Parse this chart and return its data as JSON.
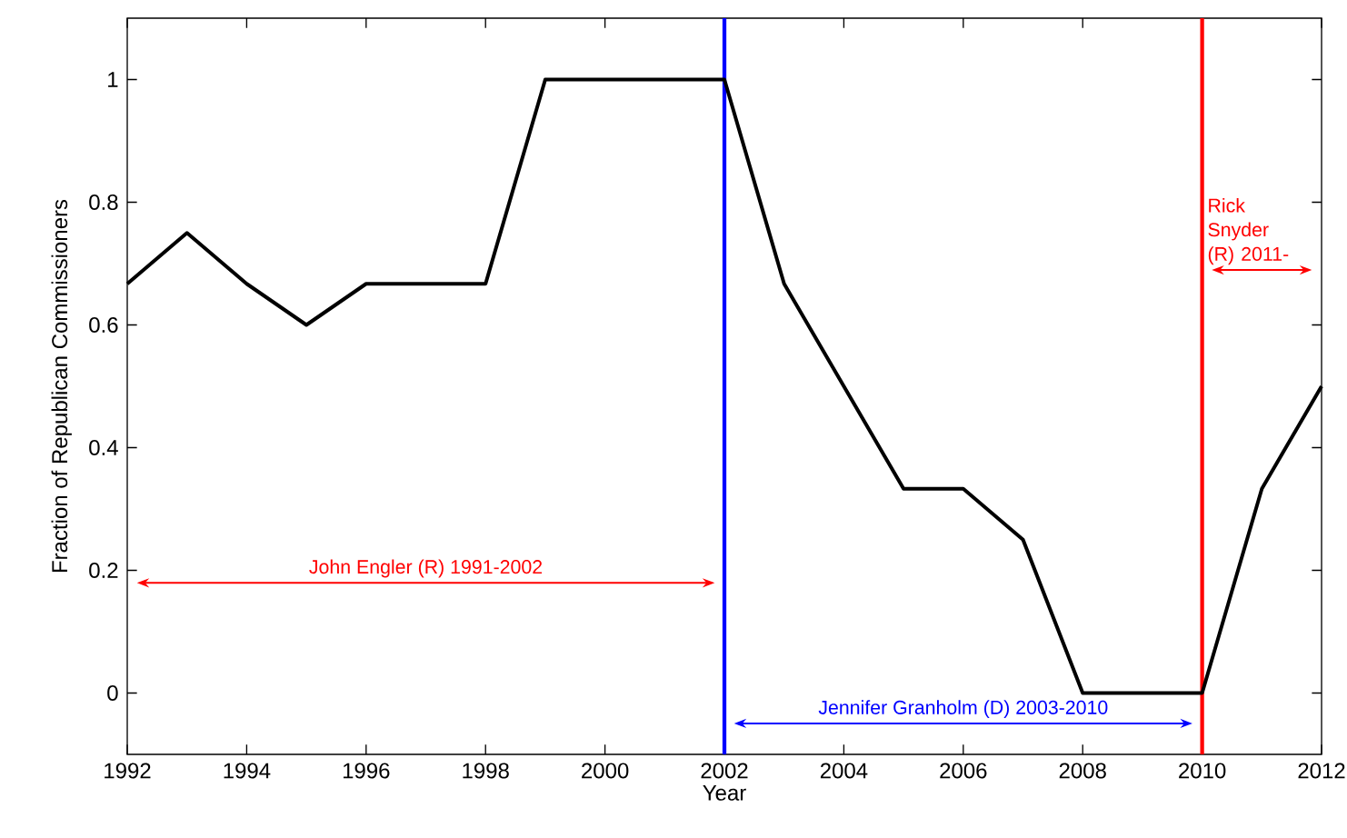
{
  "chart_data": {
    "type": "line",
    "xlabel": "Year",
    "ylabel": "Fraction of Republican Commissioners",
    "x": [
      1992,
      1993,
      1994,
      1995,
      1996,
      1997,
      1998,
      1999,
      2000,
      2001,
      2002,
      2003,
      2004,
      2005,
      2006,
      2007,
      2008,
      2009,
      2010,
      2011,
      2012
    ],
    "series": [
      {
        "color": "#000000",
        "values": [
          0.667,
          0.75,
          0.667,
          0.6,
          0.667,
          0.667,
          0.667,
          1,
          1,
          1,
          1,
          0.667,
          0.5,
          0.333,
          0.333,
          0.25,
          0,
          0,
          0,
          0.333,
          0.5
        ]
      }
    ],
    "xlim": [
      1992,
      2012
    ],
    "ylim": [
      -0.1,
      1.1
    ],
    "xticks": [
      1992,
      1994,
      1996,
      1998,
      2000,
      2002,
      2004,
      2006,
      2008,
      2010,
      2012
    ],
    "yticks": [
      0,
      0.2,
      0.4,
      0.6,
      0.8,
      1
    ],
    "ref_lines": [
      {
        "axis": "x",
        "value": 2002,
        "color": "#0000ff"
      },
      {
        "axis": "x",
        "value": 2010,
        "color": "#ff0000"
      }
    ],
    "annotations": [
      "John Engler (R) 1991-2002",
      "Jennifer Granholm (D) 2003-2010",
      "Rick Snyder (R) 2011-"
    ],
    "grid": false,
    "marker": "none",
    "line_style": "solid"
  }
}
